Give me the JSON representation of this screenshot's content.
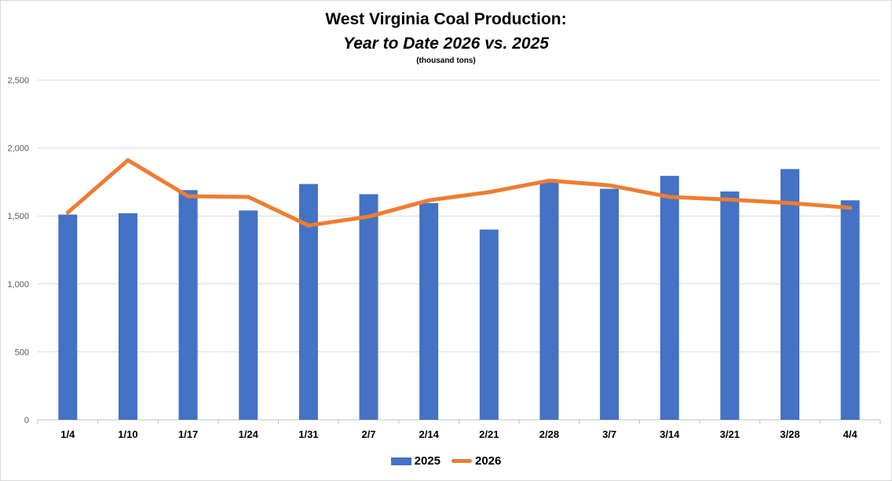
{
  "chart_data": {
    "type": "bar",
    "title": "West Virginia Coal Production:",
    "subtitle": "Year to Date 2026 vs. 2025",
    "units": "(thousand tons)",
    "xlabel": "",
    "ylabel": "",
    "ylim": [
      0,
      2500
    ],
    "yticks": [
      0,
      500,
      1000,
      1500,
      2000,
      2500
    ],
    "ytick_labels": [
      "0",
      "500",
      "1,000",
      "1,500",
      "2,000",
      "2,500"
    ],
    "grid": true,
    "legend_position": "bottom",
    "categories": [
      "1/4",
      "1/10",
      "1/17",
      "1/24",
      "1/31",
      "2/7",
      "2/14",
      "2/21",
      "2/28",
      "3/7",
      "3/14",
      "3/21",
      "3/28",
      "4/4"
    ],
    "series": [
      {
        "name": "2025",
        "type": "bar",
        "color": "#4472c4",
        "values": [
          1510,
          1520,
          1690,
          1540,
          1735,
          1660,
          1595,
          1400,
          1755,
          1700,
          1795,
          1680,
          1845,
          1615
        ]
      },
      {
        "name": "2026",
        "type": "line",
        "color": "#ed7d31",
        "values": [
          1525,
          1910,
          1645,
          1640,
          1430,
          1495,
          1615,
          1675,
          1760,
          1725,
          1640,
          1620,
          1595,
          1560
        ]
      }
    ]
  }
}
